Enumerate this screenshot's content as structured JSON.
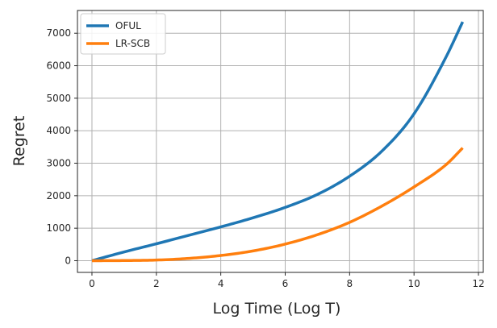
{
  "chart_data": {
    "type": "line",
    "title": "",
    "xlabel": "Log Time (Log T)",
    "ylabel": "Regret",
    "xlim": [
      -0.45,
      12.15
    ],
    "ylim": [
      -360,
      7700
    ],
    "xticks": [
      0,
      2,
      4,
      6,
      8,
      10,
      12
    ],
    "yticks": [
      0,
      1000,
      2000,
      3000,
      4000,
      5000,
      6000,
      7000
    ],
    "grid": true,
    "legend_position": "top-left",
    "series": [
      {
        "name": "OFUL",
        "color": "#1f77b4",
        "x": [
          0,
          1,
          2,
          3,
          4,
          5,
          6,
          7,
          8,
          9,
          10,
          11,
          11.51
        ],
        "y": [
          0,
          270,
          520,
          780,
          1040,
          1320,
          1640,
          2040,
          2600,
          3370,
          4520,
          6280,
          7350
        ]
      },
      {
        "name": "LR-SCB",
        "color": "#ff7f0e",
        "x": [
          0,
          1,
          2,
          3,
          4,
          5,
          6,
          7,
          8,
          9,
          10,
          11,
          11.51
        ],
        "y": [
          0,
          5,
          20,
          70,
          160,
          300,
          510,
          800,
          1180,
          1680,
          2270,
          2960,
          3470
        ]
      }
    ]
  }
}
